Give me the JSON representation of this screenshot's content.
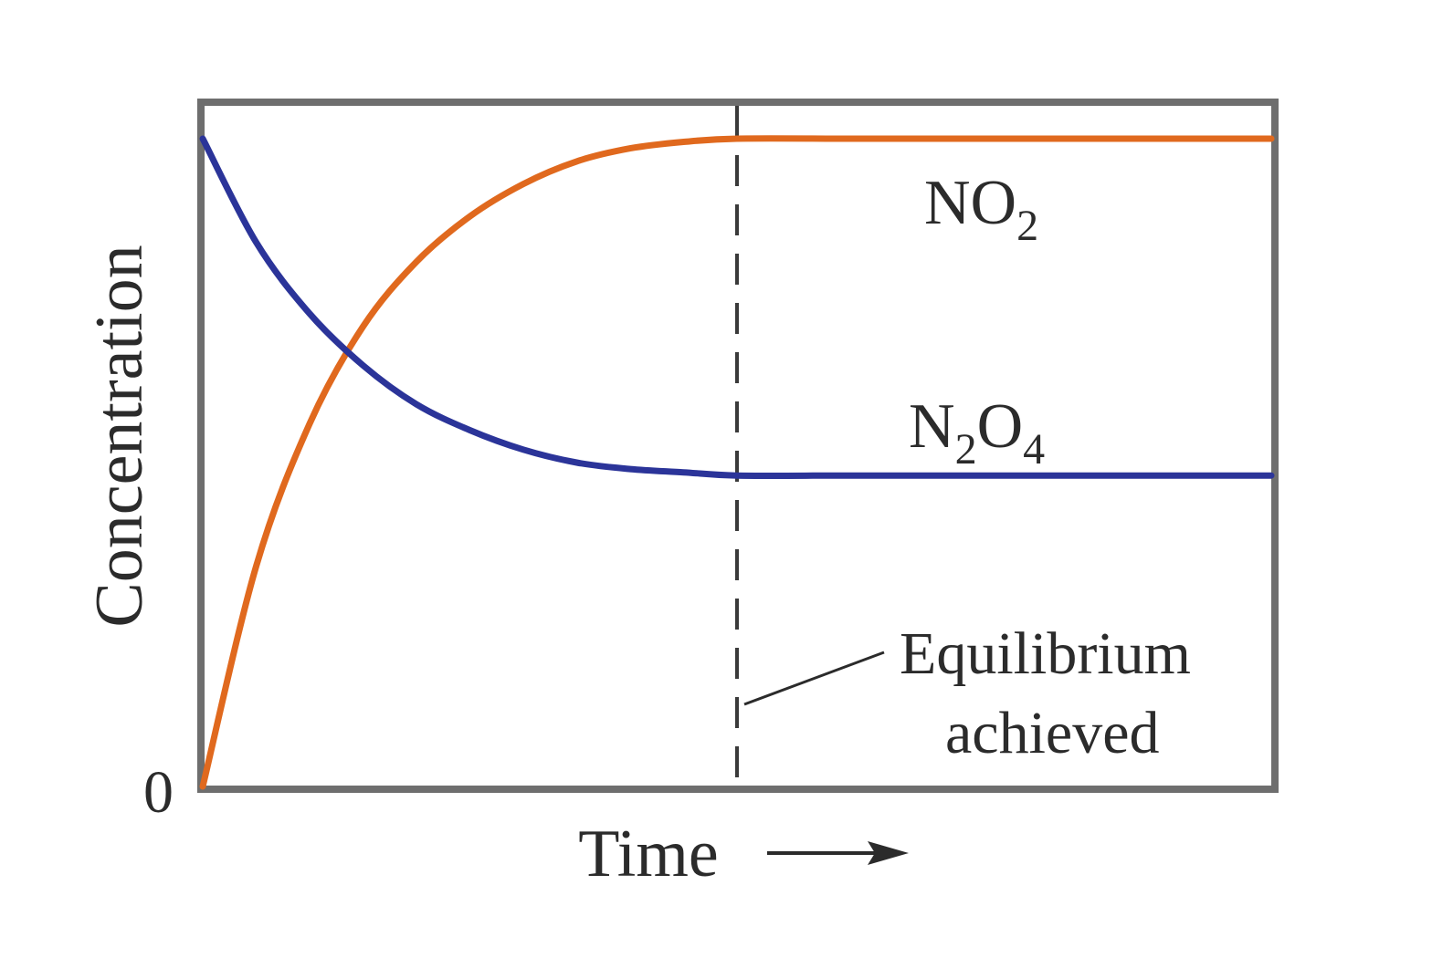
{
  "chart_data": {
    "type": "line",
    "title": "",
    "xlabel": "Time",
    "ylabel": "Concentration",
    "y_tick_labels": [
      "0"
    ],
    "xlim": [
      0,
      1
    ],
    "ylim": [
      0,
      1
    ],
    "grid": false,
    "legend": "none",
    "series": [
      {
        "name": "NO₂",
        "label_main": "NO",
        "label_sub": "2",
        "color": "#e0691e",
        "x": [
          0,
          0.05,
          0.1,
          0.15,
          0.2,
          0.25,
          0.3,
          0.35,
          0.4,
          0.45,
          0.5,
          0.6,
          0.7,
          0.8,
          0.9,
          1.0
        ],
        "y": [
          0,
          0.34,
          0.56,
          0.71,
          0.81,
          0.88,
          0.93,
          0.965,
          0.985,
          0.995,
          1.0,
          1.0,
          1.0,
          1.0,
          1.0,
          1.0
        ]
      },
      {
        "name": "N₂O₄",
        "label_parts": [
          "N",
          "2",
          "O",
          "4"
        ],
        "color": "#2b3499",
        "x": [
          0,
          0.05,
          0.1,
          0.15,
          0.2,
          0.25,
          0.3,
          0.35,
          0.4,
          0.45,
          0.5,
          0.6,
          0.7,
          0.8,
          0.9,
          1.0
        ],
        "y": [
          1.0,
          0.84,
          0.73,
          0.65,
          0.59,
          0.55,
          0.52,
          0.5,
          0.49,
          0.485,
          0.48,
          0.48,
          0.48,
          0.48,
          0.48,
          0.48
        ]
      }
    ],
    "annotations": {
      "equilibrium_x": 0.5,
      "equilibrium_line1": "Equilibrium",
      "equilibrium_line2": "achieved"
    },
    "colors": {
      "frame": "#6e6e6e",
      "text": "#2b2b2b",
      "dash": "#3a3a3a"
    }
  }
}
